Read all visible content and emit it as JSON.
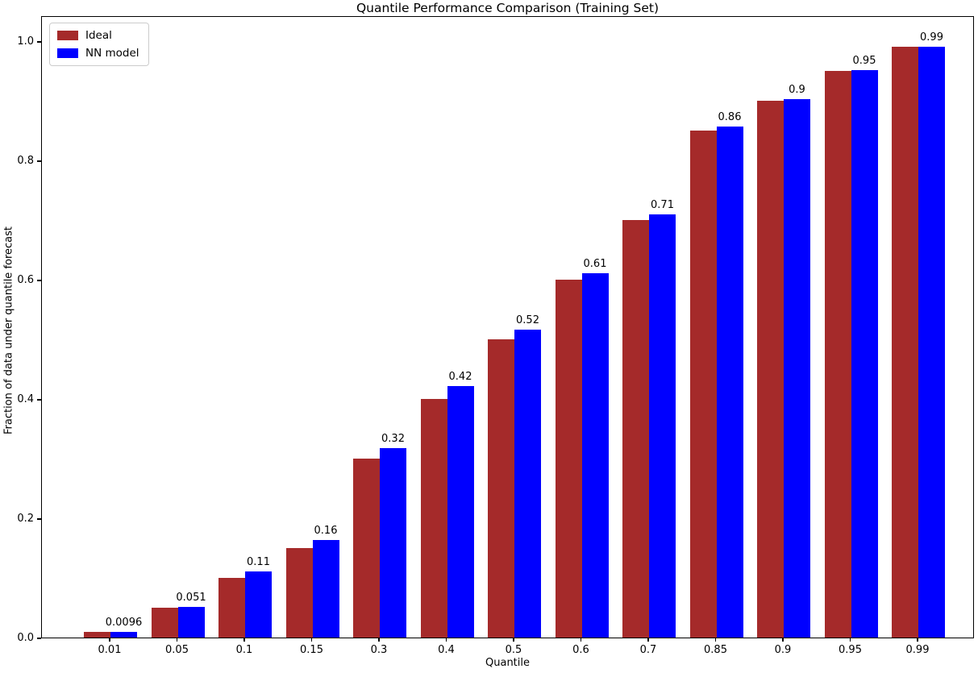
{
  "chart_data": {
    "type": "bar",
    "title": "Quantile Performance Comparison (Training Set)",
    "xlabel": "Quantile",
    "ylabel": "Fraction of data under quantile forecast",
    "categories": [
      "0.01",
      "0.05",
      "0.1",
      "0.15",
      "0.3",
      "0.4",
      "0.5",
      "0.6",
      "0.7",
      "0.85",
      "0.9",
      "0.95",
      "0.99"
    ],
    "series": [
      {
        "name": "Ideal",
        "color": "#A52A2A",
        "values": [
          0.01,
          0.05,
          0.1,
          0.15,
          0.3,
          0.4,
          0.5,
          0.6,
          0.7,
          0.85,
          0.9,
          0.95,
          0.99
        ]
      },
      {
        "name": "NN model",
        "color": "#0000FF",
        "values": [
          0.0096,
          0.051,
          0.111,
          0.163,
          0.318,
          0.422,
          0.516,
          0.611,
          0.71,
          0.857,
          0.903,
          0.951,
          0.99
        ]
      }
    ],
    "bar_value_labels": [
      "0.0096",
      "0.051",
      "0.11",
      "0.16",
      "0.32",
      "0.42",
      "0.52",
      "0.61",
      "0.71",
      "0.86",
      "0.9",
      "0.95",
      "0.99"
    ],
    "yticks": [
      "0.0",
      "0.2",
      "0.4",
      "0.6",
      "0.8",
      "1.0"
    ],
    "ylim": [
      0,
      1.043
    ],
    "grid": false,
    "legend_position": "upper left"
  }
}
